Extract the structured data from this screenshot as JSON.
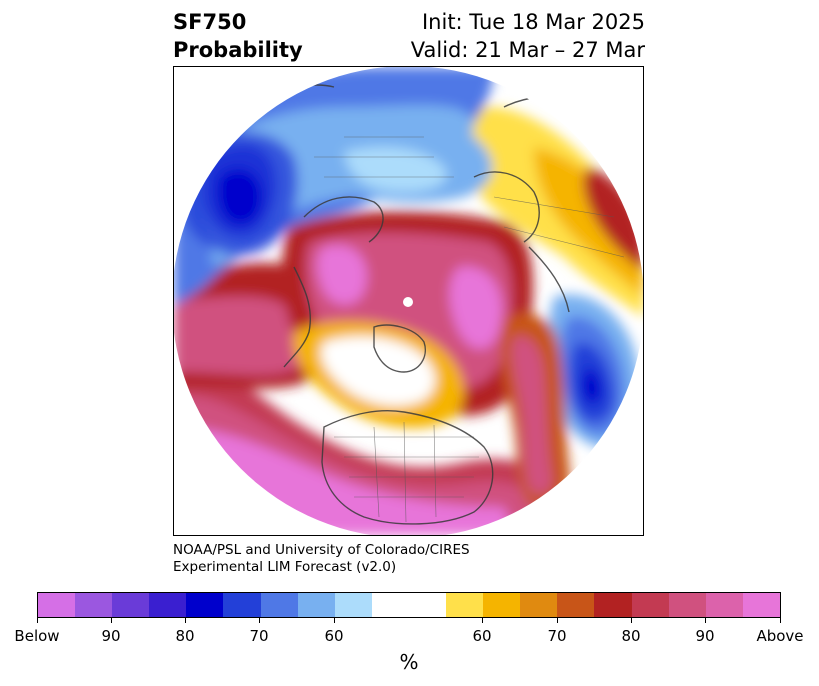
{
  "title": {
    "left_line1": "SF750",
    "left_line2": "Probability",
    "right_line1": "Init: Tue 18 Mar 2025",
    "right_line2": "Valid: 21 Mar – 27 Mar"
  },
  "credit": {
    "line1": "NOAA/PSL and University of Colorado/CIRES",
    "line2": "Experimental LIM Forecast (v2.0)"
  },
  "colorbar": {
    "unit_label": "%",
    "below_colors": [
      "#d56fe6",
      "#9b57e0",
      "#6a3bd8",
      "#3a1fd0",
      "#0000cc",
      "#2340d8",
      "#4f78e6",
      "#78b0f0",
      "#acdcfb"
    ],
    "neutral_color": "#ffffff",
    "above_colors": [
      "#ffe04a",
      "#f5b400",
      "#e08a10",
      "#c85518",
      "#b22222",
      "#c33a52",
      "#d0517f",
      "#dc62ab",
      "#e775d9"
    ],
    "tick_labels": [
      "Below",
      "90",
      "80",
      "70",
      "60",
      "60",
      "70",
      "80",
      "90",
      "Above"
    ]
  },
  "map": {
    "projection": "north-polar-stereographic",
    "features": [
      "coastlines",
      "country-borders",
      "us-state-borders"
    ]
  }
}
